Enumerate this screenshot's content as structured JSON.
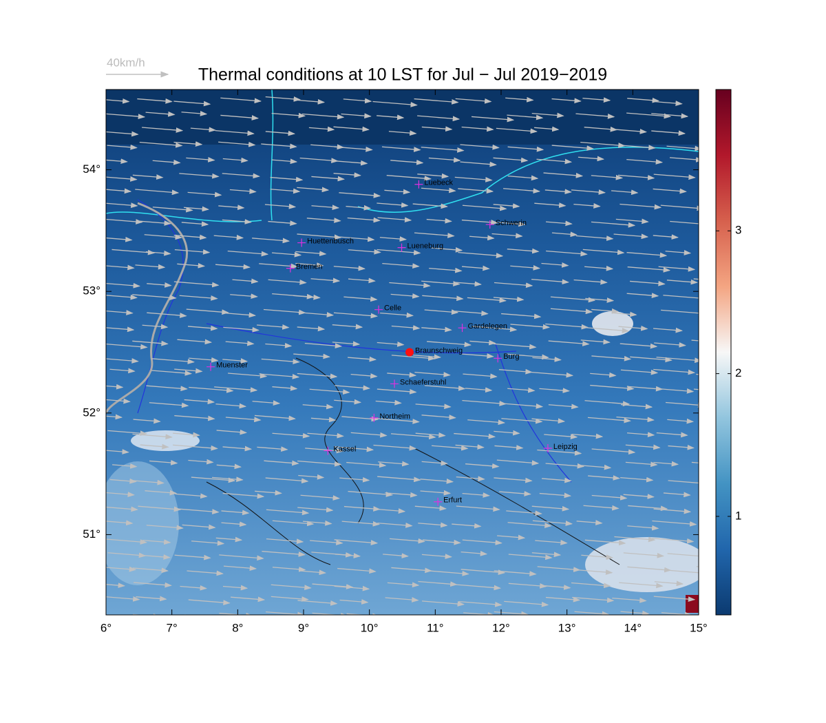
{
  "chart_data": {
    "type": "map",
    "title": "Thermal conditions at 10 LST for Jul − Jul  2019−2019",
    "wind_legend": "40km/h",
    "xlim": [
      6,
      15
    ],
    "ylim": [
      50.34,
      54.66
    ],
    "xticks": [
      {
        "value": 6,
        "label": "6°"
      },
      {
        "value": 7,
        "label": "7°"
      },
      {
        "value": 8,
        "label": "8°"
      },
      {
        "value": 9,
        "label": "9°"
      },
      {
        "value": 10,
        "label": "10°"
      },
      {
        "value": 11,
        "label": "11°"
      },
      {
        "value": 12,
        "label": "12°"
      },
      {
        "value": 13,
        "label": "13°"
      },
      {
        "value": 14,
        "label": "14°"
      },
      {
        "value": 15,
        "label": "15°"
      }
    ],
    "yticks": [
      {
        "value": 51,
        "label": "51°"
      },
      {
        "value": 52,
        "label": "52°"
      },
      {
        "value": 53,
        "label": "53°"
      },
      {
        "value": 54,
        "label": "54°"
      }
    ],
    "clim": [
      0.31,
      3.99
    ],
    "cticks": [
      1,
      2,
      3
    ],
    "colormap": [
      "#0b3a70",
      "#2166ac",
      "#4393c3",
      "#92c5de",
      "#f7f7f7",
      "#f4a582",
      "#d6604d",
      "#b2182b",
      "#67001f"
    ],
    "cities": [
      {
        "name": "Luebeck",
        "lon": 10.75,
        "lat": 53.88
      },
      {
        "name": "Schwerin",
        "lon": 11.83,
        "lat": 53.55
      },
      {
        "name": "Huettenbusch",
        "lon": 8.97,
        "lat": 53.4
      },
      {
        "name": "Lueneburg",
        "lon": 10.49,
        "lat": 53.36
      },
      {
        "name": "Bremen",
        "lon": 8.8,
        "lat": 53.19
      },
      {
        "name": "Celle",
        "lon": 10.14,
        "lat": 52.85
      },
      {
        "name": "Gardelegen",
        "lon": 11.41,
        "lat": 52.7
      },
      {
        "name": "Braunschweig",
        "lon": 10.61,
        "lat": 52.5
      },
      {
        "name": "Burg",
        "lon": 11.95,
        "lat": 52.45
      },
      {
        "name": "Muenster",
        "lon": 7.59,
        "lat": 52.38
      },
      {
        "name": "Schaeferstuhl",
        "lon": 10.38,
        "lat": 52.24
      },
      {
        "name": "Northeim",
        "lon": 10.07,
        "lat": 51.96
      },
      {
        "name": "Kassel",
        "lon": 9.37,
        "lat": 51.69
      },
      {
        "name": "Leipzig",
        "lon": 12.71,
        "lat": 51.71
      },
      {
        "name": "Erfurt",
        "lon": 11.04,
        "lat": 51.27
      }
    ],
    "highlight_city": "Braunschweig"
  }
}
